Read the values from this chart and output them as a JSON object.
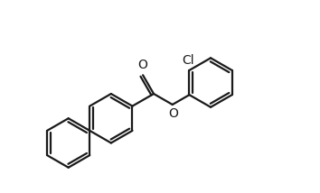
{
  "background_color": "#ffffff",
  "line_color": "#1a1a1a",
  "line_width": 1.6,
  "font_size": 10,
  "fig_width": 3.54,
  "fig_height": 2.14,
  "dpi": 100,
  "xlim": [
    -0.3,
    8.5
  ],
  "ylim": [
    -3.2,
    3.2
  ]
}
